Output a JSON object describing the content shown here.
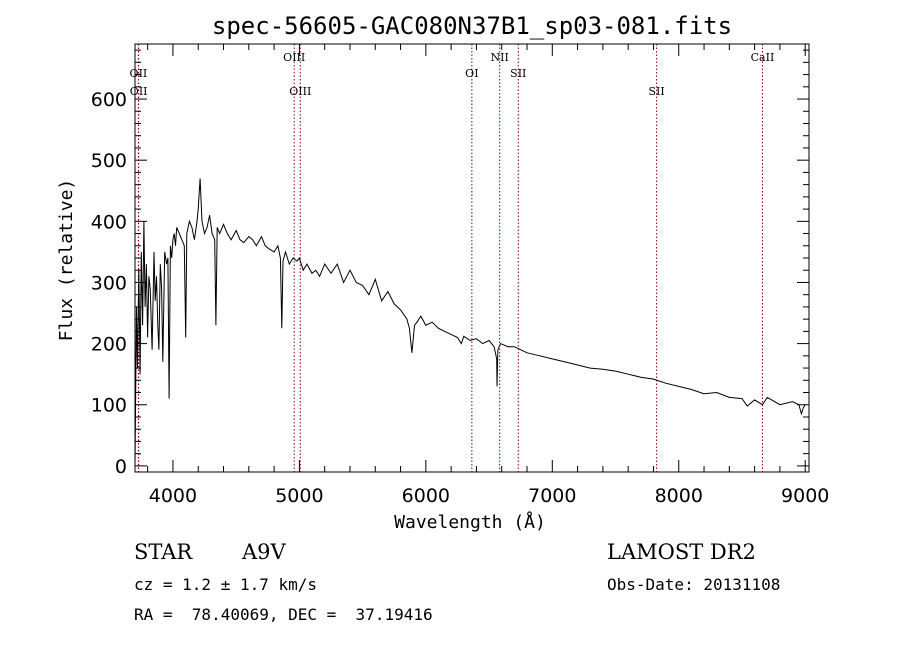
{
  "chart_data": {
    "type": "line",
    "title": "spec-56605-GAC080N37B1_sp03-081.fits",
    "xlabel": "Wavelength (Å)",
    "ylabel": "Flux (relative)",
    "xlim": [
      3700,
      9030
    ],
    "ylim": [
      -10,
      690
    ],
    "xticks": [
      4000,
      5000,
      6000,
      7000,
      8000,
      9000
    ],
    "xtick_labels": [
      "4000",
      "5000",
      "6000",
      "7000",
      "8000",
      "9000"
    ],
    "yticks": [
      0,
      100,
      200,
      300,
      400,
      500,
      600
    ],
    "ytick_labels": [
      "0",
      "100",
      "200",
      "300",
      "400",
      "500",
      "600"
    ],
    "grid": false,
    "series": [
      {
        "x": [
          3700,
          3712,
          3720,
          3730,
          3740,
          3750,
          3760,
          3770,
          3780,
          3790,
          3800,
          3810,
          3820,
          3835,
          3850,
          3860,
          3870,
          3880,
          3889,
          3900,
          3910,
          3920,
          3935,
          3950,
          3960,
          3970,
          3980,
          3990,
          4000,
          4010,
          4020,
          4030,
          4050,
          4070,
          4090,
          4101,
          4110,
          4130,
          4150,
          4170,
          4190,
          4200,
          4215,
          4230,
          4250,
          4270,
          4290,
          4310,
          4330,
          4340,
          4350,
          4370,
          4400,
          4430,
          4460,
          4500,
          4530,
          4560,
          4600,
          4630,
          4660,
          4700,
          4730,
          4760,
          4800,
          4830,
          4850,
          4861,
          4870,
          4890,
          4920,
          4950,
          4980,
          5000,
          5030,
          5060,
          5100,
          5130,
          5160,
          5200,
          5250,
          5300,
          5350,
          5400,
          5450,
          5500,
          5550,
          5600,
          5650,
          5700,
          5750,
          5800,
          5850,
          5870,
          5890,
          5910,
          5930,
          5960,
          6000,
          6050,
          6100,
          6150,
          6200,
          6250,
          6280,
          6300,
          6350,
          6400,
          6450,
          6500,
          6540,
          6560,
          6563,
          6570,
          6590,
          6650,
          6700,
          6800,
          6900,
          7000,
          7100,
          7200,
          7300,
          7400,
          7500,
          7600,
          7700,
          7800,
          7900,
          8000,
          8100,
          8200,
          8300,
          8400,
          8500,
          8542,
          8600,
          8662,
          8700,
          8800,
          8900,
          8950,
          8970,
          8985,
          9000
        ],
        "y": [
          0,
          260,
          160,
          320,
          150,
          350,
          230,
          400,
          260,
          330,
          210,
          310,
          290,
          190,
          350,
          270,
          310,
          230,
          190,
          330,
          290,
          170,
          350,
          330,
          340,
          110,
          360,
          340,
          370,
          380,
          360,
          390,
          380,
          370,
          360,
          210,
          380,
          400,
          390,
          370,
          400,
          420,
          470,
          400,
          380,
          390,
          410,
          380,
          370,
          230,
          390,
          380,
          395,
          380,
          370,
          385,
          370,
          365,
          375,
          370,
          360,
          375,
          360,
          355,
          350,
          360,
          340,
          225,
          335,
          350,
          330,
          340,
          335,
          340,
          320,
          330,
          315,
          320,
          310,
          330,
          315,
          330,
          300,
          320,
          300,
          295,
          280,
          305,
          270,
          285,
          265,
          255,
          240,
          225,
          185,
          230,
          235,
          245,
          230,
          235,
          225,
          220,
          215,
          210,
          200,
          212,
          205,
          208,
          200,
          205,
          195,
          175,
          130,
          190,
          200,
          195,
          195,
          185,
          180,
          175,
          170,
          165,
          160,
          158,
          155,
          150,
          145,
          142,
          135,
          130,
          125,
          118,
          120,
          112,
          110,
          98,
          108,
          100,
          112,
          100,
          105,
          100,
          85,
          95,
          100
        ]
      }
    ],
    "lines": [
      {
        "label": "OII",
        "x": 3727,
        "row": 1
      },
      {
        "label": "OII",
        "x": 3729,
        "row": 2
      },
      {
        "label": "OIII",
        "x": 4959,
        "row": 0
      },
      {
        "label": "OIII",
        "x": 5007,
        "row": 3
      },
      {
        "label": "OI",
        "x": 6364,
        "row": 1
      },
      {
        "label": "NII",
        "x": 6584,
        "row": 0
      },
      {
        "label": "SII",
        "x": 6731,
        "row": 1
      },
      {
        "label": "SII",
        "x": 7825,
        "row": 3
      },
      {
        "label": "CaII",
        "x": 8662,
        "row": 0
      }
    ]
  },
  "info": {
    "object_class": "STAR",
    "subclass": "A9V",
    "survey": "LAMOST DR2",
    "cz": "cz = 1.2 ± 1.7 km/s",
    "obs_date": "Obs-Date: 20131108",
    "coords": "RA =  78.40069, DEC =  37.19416"
  },
  "colors": {
    "spectrum": "#000000",
    "line_marker": "#8b0000",
    "background": "#ffffff"
  }
}
